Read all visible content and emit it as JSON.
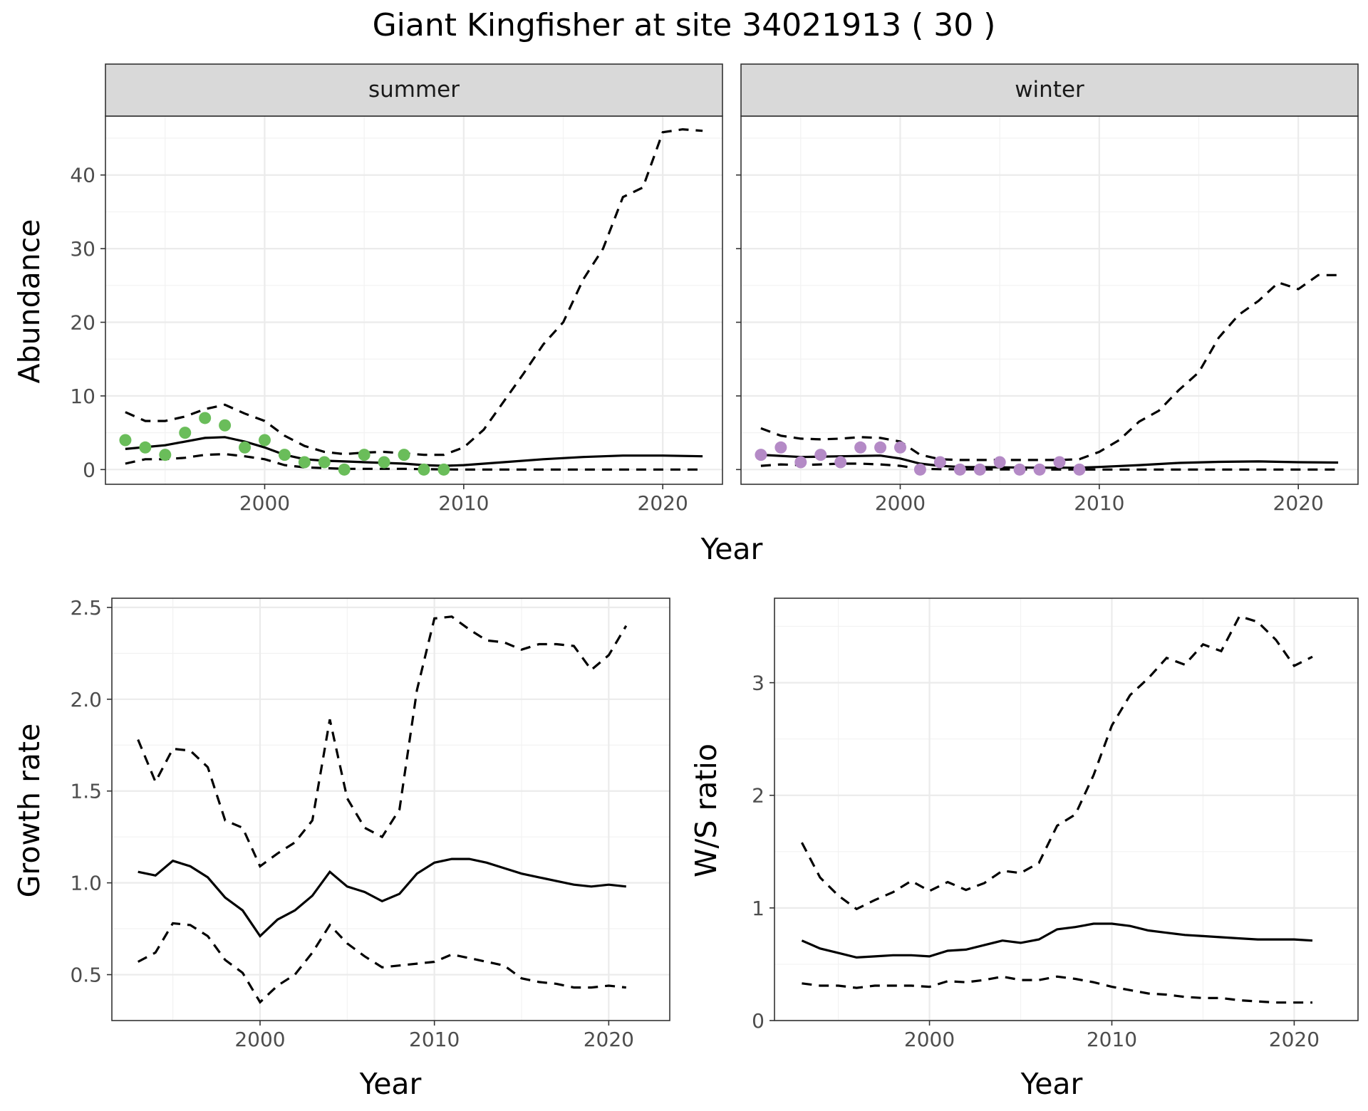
{
  "title": "Giant Kingfisher at site 34021913 ( 30 )",
  "chart_data": [
    {
      "type": "scatter",
      "facet": "summer",
      "xlabel": "Year",
      "ylabel": "Abundance",
      "xlim": [
        1992,
        2023
      ],
      "ylim": [
        -2,
        48
      ],
      "xticks": [
        2000,
        2010,
        2020
      ],
      "yticks": [
        0,
        10,
        20,
        30,
        40
      ],
      "point_color": "#6abd5a",
      "points": [
        [
          1993,
          4
        ],
        [
          1994,
          3
        ],
        [
          1995,
          2
        ],
        [
          1996,
          5
        ],
        [
          1997,
          7
        ],
        [
          1998,
          6
        ],
        [
          1999,
          3
        ],
        [
          2000,
          4
        ],
        [
          2001,
          2
        ],
        [
          2002,
          1
        ],
        [
          2003,
          1
        ],
        [
          2004,
          0
        ],
        [
          2005,
          2
        ],
        [
          2006,
          1
        ],
        [
          2007,
          2
        ],
        [
          2008,
          0
        ],
        [
          2009,
          0
        ]
      ],
      "estimate": [
        [
          1993,
          2.8
        ],
        [
          1995,
          3.3
        ],
        [
          1997,
          4.3
        ],
        [
          1998,
          4.4
        ],
        [
          1999,
          3.8
        ],
        [
          2000,
          3.0
        ],
        [
          2001,
          2.0
        ],
        [
          2002,
          1.4
        ],
        [
          2003,
          1.2
        ],
        [
          2004,
          1.1
        ],
        [
          2005,
          1.0
        ],
        [
          2006,
          0.9
        ],
        [
          2007,
          0.8
        ],
        [
          2008,
          0.6
        ],
        [
          2009,
          0.5
        ],
        [
          2010,
          0.6
        ],
        [
          2012,
          1.0
        ],
        [
          2014,
          1.4
        ],
        [
          2016,
          1.7
        ],
        [
          2018,
          1.9
        ],
        [
          2020,
          1.9
        ],
        [
          2022,
          1.8
        ]
      ],
      "upper": [
        [
          1993,
          7.8
        ],
        [
          1994,
          6.6
        ],
        [
          1995,
          6.6
        ],
        [
          1996,
          7.2
        ],
        [
          1997,
          8.2
        ],
        [
          1998,
          8.8
        ],
        [
          1999,
          7.6
        ],
        [
          2000,
          6.6
        ],
        [
          2001,
          4.6
        ],
        [
          2002,
          3.2
        ],
        [
          2003,
          2.4
        ],
        [
          2004,
          2.1
        ],
        [
          2005,
          2.3
        ],
        [
          2006,
          2.4
        ],
        [
          2007,
          2.2
        ],
        [
          2008,
          2.0
        ],
        [
          2009,
          2.0
        ],
        [
          2010,
          3.0
        ],
        [
          2011,
          5.4
        ],
        [
          2012,
          9.2
        ],
        [
          2013,
          13.0
        ],
        [
          2014,
          17.0
        ],
        [
          2015,
          20.0
        ],
        [
          2016,
          25.8
        ],
        [
          2017,
          30.0
        ],
        [
          2018,
          37.0
        ],
        [
          2019,
          38.3
        ],
        [
          2020,
          45.8
        ],
        [
          2021,
          46.2
        ],
        [
          2022,
          46.0
        ]
      ],
      "lower": [
        [
          1993,
          0.8
        ],
        [
          1994,
          1.4
        ],
        [
          1995,
          1.4
        ],
        [
          1996,
          1.6
        ],
        [
          1997,
          2.0
        ],
        [
          1998,
          2.1
        ],
        [
          1999,
          1.8
        ],
        [
          2000,
          1.4
        ],
        [
          2001,
          0.6
        ],
        [
          2002,
          0.3
        ],
        [
          2003,
          0.2
        ],
        [
          2004,
          0.1
        ],
        [
          2005,
          0.1
        ],
        [
          2006,
          0.1
        ],
        [
          2007,
          0.1
        ],
        [
          2008,
          0.05
        ],
        [
          2009,
          0.02
        ],
        [
          2010,
          0.0
        ],
        [
          2015,
          0.0
        ],
        [
          2022,
          0.0
        ]
      ]
    },
    {
      "type": "scatter",
      "facet": "winter",
      "xlabel": "Year",
      "ylabel": "Abundance",
      "xlim": [
        1992,
        2023
      ],
      "ylim": [
        -2,
        48
      ],
      "xticks": [
        2000,
        2010,
        2020
      ],
      "yticks": [
        0,
        10,
        20,
        30,
        40
      ],
      "point_color": "#b48ac6",
      "points": [
        [
          1993,
          2
        ],
        [
          1994,
          3
        ],
        [
          1995,
          1
        ],
        [
          1996,
          2
        ],
        [
          1997,
          1
        ],
        [
          1998,
          3
        ],
        [
          1999,
          3
        ],
        [
          2000,
          3
        ],
        [
          2001,
          0
        ],
        [
          2002,
          1
        ],
        [
          2003,
          0
        ],
        [
          2004,
          0
        ],
        [
          2005,
          1
        ],
        [
          2006,
          0
        ],
        [
          2007,
          0
        ],
        [
          2008,
          1
        ],
        [
          2009,
          0
        ]
      ],
      "estimate": [
        [
          1993,
          2.0
        ],
        [
          1995,
          1.7
        ],
        [
          1997,
          1.8
        ],
        [
          1999,
          1.9
        ],
        [
          2000,
          1.5
        ],
        [
          2001,
          0.8
        ],
        [
          2002,
          0.5
        ],
        [
          2003,
          0.35
        ],
        [
          2005,
          0.3
        ],
        [
          2007,
          0.25
        ],
        [
          2009,
          0.25
        ],
        [
          2010,
          0.35
        ],
        [
          2012,
          0.6
        ],
        [
          2014,
          0.9
        ],
        [
          2016,
          1.05
        ],
        [
          2018,
          1.1
        ],
        [
          2020,
          1.0
        ],
        [
          2022,
          0.95
        ]
      ],
      "upper": [
        [
          1993,
          5.6
        ],
        [
          1994,
          4.6
        ],
        [
          1995,
          4.2
        ],
        [
          1996,
          4.1
        ],
        [
          1997,
          4.2
        ],
        [
          1998,
          4.4
        ],
        [
          1999,
          4.3
        ],
        [
          2000,
          3.8
        ],
        [
          2001,
          2.0
        ],
        [
          2002,
          1.4
        ],
        [
          2003,
          1.3
        ],
        [
          2004,
          1.3
        ],
        [
          2005,
          1.3
        ],
        [
          2006,
          1.3
        ],
        [
          2007,
          1.3
        ],
        [
          2008,
          1.3
        ],
        [
          2009,
          1.4
        ],
        [
          2010,
          2.4
        ],
        [
          2011,
          4.0
        ],
        [
          2012,
          6.5
        ],
        [
          2013,
          8.0
        ],
        [
          2014,
          10.8
        ],
        [
          2015,
          13.2
        ],
        [
          2016,
          17.9
        ],
        [
          2017,
          21.0
        ],
        [
          2018,
          22.9
        ],
        [
          2019,
          25.4
        ],
        [
          2020,
          24.5
        ],
        [
          2021,
          26.4
        ],
        [
          2022,
          26.4
        ]
      ],
      "lower": [
        [
          1993,
          0.5
        ],
        [
          1994,
          0.7
        ],
        [
          1995,
          0.6
        ],
        [
          1996,
          0.7
        ],
        [
          1997,
          0.8
        ],
        [
          1998,
          0.8
        ],
        [
          1999,
          0.7
        ],
        [
          2000,
          0.5
        ],
        [
          2001,
          0.1
        ],
        [
          2002,
          0.05
        ],
        [
          2004,
          0.02
        ],
        [
          2010,
          0.0
        ],
        [
          2022,
          0.0
        ]
      ]
    },
    {
      "type": "line",
      "xlabel": "Year",
      "ylabel": "Growth rate",
      "xlim": [
        1991.5,
        2023.5
      ],
      "ylim": [
        0.25,
        2.55
      ],
      "xticks": [
        2000,
        2010,
        2020
      ],
      "yticks": [
        0.5,
        1.0,
        1.5,
        2.0,
        2.5
      ],
      "ytick_labels": [
        "0.5",
        "1.0",
        "1.5",
        "2.0",
        "2.5"
      ],
      "estimate": [
        [
          1993,
          1.06
        ],
        [
          1994,
          1.04
        ],
        [
          1995,
          1.12
        ],
        [
          1996,
          1.09
        ],
        [
          1997,
          1.03
        ],
        [
          1998,
          0.92
        ],
        [
          1999,
          0.85
        ],
        [
          2000,
          0.71
        ],
        [
          2001,
          0.8
        ],
        [
          2002,
          0.85
        ],
        [
          2003,
          0.93
        ],
        [
          2004,
          1.06
        ],
        [
          2005,
          0.98
        ],
        [
          2006,
          0.95
        ],
        [
          2007,
          0.9
        ],
        [
          2008,
          0.94
        ],
        [
          2009,
          1.05
        ],
        [
          2010,
          1.11
        ],
        [
          2011,
          1.13
        ],
        [
          2012,
          1.13
        ],
        [
          2013,
          1.11
        ],
        [
          2014,
          1.08
        ],
        [
          2015,
          1.05
        ],
        [
          2016,
          1.03
        ],
        [
          2017,
          1.01
        ],
        [
          2018,
          0.99
        ],
        [
          2019,
          0.98
        ],
        [
          2020,
          0.99
        ],
        [
          2021,
          0.98
        ]
      ],
      "upper": [
        [
          1993,
          1.78
        ],
        [
          1994,
          1.55
        ],
        [
          1995,
          1.73
        ],
        [
          1996,
          1.72
        ],
        [
          1997,
          1.63
        ],
        [
          1998,
          1.34
        ],
        [
          1999,
          1.3
        ],
        [
          2000,
          1.09
        ],
        [
          2001,
          1.16
        ],
        [
          2002,
          1.22
        ],
        [
          2003,
          1.34
        ],
        [
          2004,
          1.89
        ],
        [
          2005,
          1.46
        ],
        [
          2006,
          1.3
        ],
        [
          2007,
          1.25
        ],
        [
          2008,
          1.4
        ],
        [
          2009,
          2.05
        ],
        [
          2010,
          2.44
        ],
        [
          2011,
          2.45
        ],
        [
          2012,
          2.38
        ],
        [
          2013,
          2.32
        ],
        [
          2014,
          2.31
        ],
        [
          2015,
          2.27
        ],
        [
          2016,
          2.3
        ],
        [
          2017,
          2.3
        ],
        [
          2018,
          2.29
        ],
        [
          2019,
          2.16
        ],
        [
          2020,
          2.24
        ],
        [
          2021,
          2.4
        ]
      ],
      "lower": [
        [
          1993,
          0.57
        ],
        [
          1994,
          0.62
        ],
        [
          1995,
          0.78
        ],
        [
          1996,
          0.77
        ],
        [
          1997,
          0.71
        ],
        [
          1998,
          0.58
        ],
        [
          1999,
          0.51
        ],
        [
          2000,
          0.35
        ],
        [
          2001,
          0.44
        ],
        [
          2002,
          0.5
        ],
        [
          2003,
          0.62
        ],
        [
          2004,
          0.77
        ],
        [
          2005,
          0.67
        ],
        [
          2006,
          0.6
        ],
        [
          2007,
          0.54
        ],
        [
          2008,
          0.55
        ],
        [
          2009,
          0.56
        ],
        [
          2010,
          0.57
        ],
        [
          2011,
          0.61
        ],
        [
          2012,
          0.59
        ],
        [
          2013,
          0.57
        ],
        [
          2014,
          0.55
        ],
        [
          2015,
          0.48
        ],
        [
          2016,
          0.46
        ],
        [
          2017,
          0.45
        ],
        [
          2018,
          0.43
        ],
        [
          2019,
          0.43
        ],
        [
          2020,
          0.44
        ],
        [
          2021,
          0.43
        ]
      ]
    },
    {
      "type": "line",
      "xlabel": "Year",
      "ylabel": "W/S ratio",
      "xlim": [
        1991.5,
        2023.5
      ],
      "ylim": [
        0.0,
        3.75
      ],
      "xticks": [
        2000,
        2010,
        2020
      ],
      "yticks": [
        0,
        1,
        2,
        3
      ],
      "ytick_labels": [
        "0",
        "1",
        "2",
        "3"
      ],
      "estimate": [
        [
          1993,
          0.71
        ],
        [
          1994,
          0.64
        ],
        [
          1995,
          0.6
        ],
        [
          1996,
          0.56
        ],
        [
          1997,
          0.57
        ],
        [
          1998,
          0.58
        ],
        [
          1999,
          0.58
        ],
        [
          2000,
          0.57
        ],
        [
          2001,
          0.62
        ],
        [
          2002,
          0.63
        ],
        [
          2003,
          0.67
        ],
        [
          2004,
          0.71
        ],
        [
          2005,
          0.69
        ],
        [
          2006,
          0.72
        ],
        [
          2007,
          0.81
        ],
        [
          2008,
          0.83
        ],
        [
          2009,
          0.86
        ],
        [
          2010,
          0.86
        ],
        [
          2011,
          0.84
        ],
        [
          2012,
          0.8
        ],
        [
          2013,
          0.78
        ],
        [
          2014,
          0.76
        ],
        [
          2015,
          0.75
        ],
        [
          2016,
          0.74
        ],
        [
          2017,
          0.73
        ],
        [
          2018,
          0.72
        ],
        [
          2019,
          0.72
        ],
        [
          2020,
          0.72
        ],
        [
          2021,
          0.71
        ]
      ],
      "upper": [
        [
          1993,
          1.58
        ],
        [
          1994,
          1.27
        ],
        [
          1995,
          1.11
        ],
        [
          1996,
          0.99
        ],
        [
          1997,
          1.07
        ],
        [
          1998,
          1.14
        ],
        [
          1999,
          1.24
        ],
        [
          2000,
          1.15
        ],
        [
          2001,
          1.23
        ],
        [
          2002,
          1.16
        ],
        [
          2003,
          1.22
        ],
        [
          2004,
          1.33
        ],
        [
          2005,
          1.31
        ],
        [
          2006,
          1.4
        ],
        [
          2007,
          1.73
        ],
        [
          2008,
          1.83
        ],
        [
          2009,
          2.18
        ],
        [
          2010,
          2.62
        ],
        [
          2011,
          2.89
        ],
        [
          2012,
          3.04
        ],
        [
          2013,
          3.22
        ],
        [
          2014,
          3.16
        ],
        [
          2015,
          3.34
        ],
        [
          2016,
          3.28
        ],
        [
          2017,
          3.59
        ],
        [
          2018,
          3.54
        ],
        [
          2019,
          3.38
        ],
        [
          2020,
          3.15
        ],
        [
          2021,
          3.23
        ]
      ],
      "lower": [
        [
          1993,
          0.33
        ],
        [
          1994,
          0.31
        ],
        [
          1995,
          0.31
        ],
        [
          1996,
          0.29
        ],
        [
          1997,
          0.31
        ],
        [
          1998,
          0.31
        ],
        [
          1999,
          0.31
        ],
        [
          2000,
          0.3
        ],
        [
          2001,
          0.35
        ],
        [
          2002,
          0.34
        ],
        [
          2003,
          0.36
        ],
        [
          2004,
          0.39
        ],
        [
          2005,
          0.36
        ],
        [
          2006,
          0.36
        ],
        [
          2007,
          0.39
        ],
        [
          2008,
          0.37
        ],
        [
          2009,
          0.34
        ],
        [
          2010,
          0.3
        ],
        [
          2011,
          0.27
        ],
        [
          2012,
          0.24
        ],
        [
          2013,
          0.23
        ],
        [
          2014,
          0.21
        ],
        [
          2015,
          0.2
        ],
        [
          2016,
          0.2
        ],
        [
          2017,
          0.18
        ],
        [
          2018,
          0.17
        ],
        [
          2019,
          0.16
        ],
        [
          2020,
          0.16
        ],
        [
          2021,
          0.16
        ]
      ]
    }
  ]
}
